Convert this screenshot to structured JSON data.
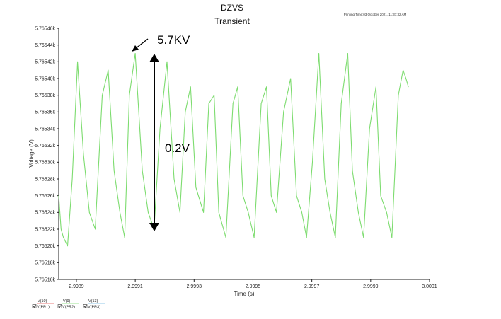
{
  "chart_data": {
    "type": "line",
    "title": "DZVS",
    "subtitle": "Transient",
    "printing_time": "Printing Time:03 October 2021, 11:37:32 AM",
    "xlabel": "Time (s)",
    "ylabel": "Voltage (V)",
    "xlim": [
      2.99884,
      3.0001
    ],
    "ylim": [
      5.76516,
      5.76546
    ],
    "x_ticks": [
      "2.9989",
      "2.9991",
      "2.9993",
      "2.9995",
      "2.9997",
      "2.9999",
      "3.0001"
    ],
    "y_ticks": [
      "5.76546k",
      "5.76544k",
      "5.76542k",
      "5.76540k",
      "5.76538k",
      "5.76536k",
      "5.76534k",
      "5.76532k",
      "5.76530k",
      "5.76528k",
      "5.76526k",
      "5.76524k",
      "5.76522k",
      "5.76520k",
      "5.76518k",
      "5.76516k"
    ],
    "grid": false,
    "series": [
      {
        "color": "#7ddc6f",
        "x": [
          2.99884,
          2.998848,
          2.998856,
          2.99887,
          2.998886,
          2.998904,
          2.998924,
          2.998944,
          2.998964,
          2.998988,
          2.999008,
          2.999028,
          2.999048,
          2.999064,
          2.99908,
          2.9991,
          2.999124,
          2.999144,
          2.999164,
          2.999184,
          2.999208,
          2.999232,
          2.999252,
          2.99927,
          2.999288,
          2.999306,
          2.999332,
          2.99935,
          2.999368,
          2.999384,
          2.999408,
          2.999432,
          2.999448,
          2.999466,
          2.999484,
          2.999504,
          2.999528,
          2.999546,
          2.999562,
          2.99958,
          2.999604,
          2.999628,
          2.999648,
          2.999666,
          2.999682,
          2.999702,
          2.999724,
          2.999744,
          2.999762,
          2.99978,
          2.9998,
          2.999822,
          2.999838,
          2.999858,
          2.999876,
          2.999896,
          2.999918,
          2.999934,
          2.999954,
          2.999972,
          2.999994,
          3.00001,
          3.00002,
          3.000028
        ],
        "values": [
          5.76526,
          5.76522,
          5.76521,
          5.7652,
          5.76528,
          5.76542,
          5.76531,
          5.76524,
          5.76522,
          5.76538,
          5.76541,
          5.76529,
          5.76524,
          5.76521,
          5.76538,
          5.76543,
          5.76529,
          5.76524,
          5.76522,
          5.76534,
          5.76542,
          5.76528,
          5.76524,
          5.76536,
          5.76539,
          5.76527,
          5.76524,
          5.76537,
          5.76538,
          5.76524,
          5.76521,
          5.76537,
          5.76539,
          5.76526,
          5.76524,
          5.76521,
          5.76537,
          5.76539,
          5.76526,
          5.76524,
          5.76536,
          5.7654,
          5.76526,
          5.76524,
          5.76521,
          5.7653,
          5.76543,
          5.76528,
          5.76524,
          5.76521,
          5.76537,
          5.76543,
          5.76529,
          5.76524,
          5.76521,
          5.76534,
          5.76539,
          5.76526,
          5.76524,
          5.76521,
          5.76538,
          5.76541,
          5.7654,
          5.76539
        ]
      }
    ],
    "annotations": [
      "5.7KV",
      "0.2V"
    ],
    "legend": [
      {
        "top": "V(10)",
        "bottom": "V(PR1)",
        "color": "#e05050"
      },
      {
        "top": "V(9)",
        "bottom": "V(PR2)",
        "color": "#7ddc6f"
      },
      {
        "top": "V(13)",
        "bottom": "V(PR3)",
        "color": "#6fb7e0"
      }
    ]
  }
}
